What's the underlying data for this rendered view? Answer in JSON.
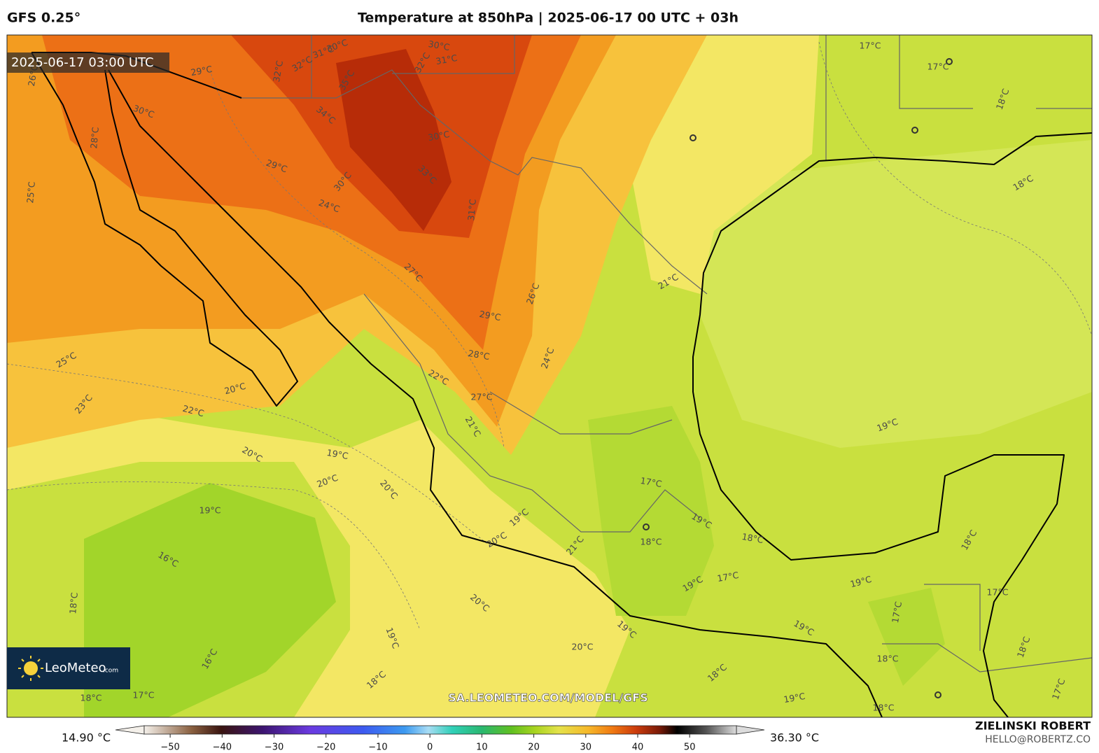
{
  "header": {
    "model": "GFS 0.25°",
    "title": "Temperature at 850hPa | 2025-06-17 00 UTC + 03h"
  },
  "map": {
    "valid_time": "2025-06-17 03:00 UTC",
    "contour_labels": [
      "30°C",
      "31°C",
      "32°C",
      "32°C",
      "35°C",
      "34°C",
      "29°C",
      "26°C",
      "30°C",
      "28°C",
      "29°C",
      "30°C",
      "24°C",
      "25°C",
      "30°C",
      "31°C",
      "32°C",
      "30°C",
      "33°C",
      "31°C",
      "27°C",
      "26°C",
      "21°C",
      "29°C",
      "28°C",
      "24°C",
      "22°C",
      "27°C",
      "21°C",
      "25°C",
      "20°C",
      "23°C",
      "22°C",
      "20°C",
      "19°C",
      "20°C",
      "20°C",
      "17°C",
      "19°C",
      "19°C",
      "19°C",
      "20°C",
      "21°C",
      "18°C",
      "18°C",
      "16°C",
      "19°C",
      "17°C",
      "19°C",
      "18°C",
      "20°C",
      "19°C",
      "19°C",
      "19°C",
      "20°C",
      "16°C",
      "18°C",
      "18°C",
      "18°C",
      "17°C",
      "18°C",
      "19°C",
      "18°C",
      "18°C",
      "17°C",
      "17°C",
      "18°C",
      "19°C",
      "18°C",
      "18°C",
      "17°C",
      "17°C",
      "17°C"
    ],
    "url": "SA.LEOMETEO.COM/MODEL/GFS"
  },
  "logo": {
    "brand": "LeoMeteo",
    "suffix": ".com"
  },
  "footer": {
    "author": "ZIELINSKI ROBERT",
    "email": "HELLO@ROBERTZ.CO"
  },
  "colorbar": {
    "min_label": "14.90 °C",
    "max_label": "36.30 °C",
    "lim": [
      -55,
      59
    ],
    "ticks": [
      {
        "value": -50,
        "label": "−50"
      },
      {
        "value": -40,
        "label": "−40"
      },
      {
        "value": -30,
        "label": "−30"
      },
      {
        "value": -20,
        "label": "−20"
      },
      {
        "value": -10,
        "label": "−10"
      },
      0,
      10,
      20,
      30,
      40,
      50
    ]
  }
}
